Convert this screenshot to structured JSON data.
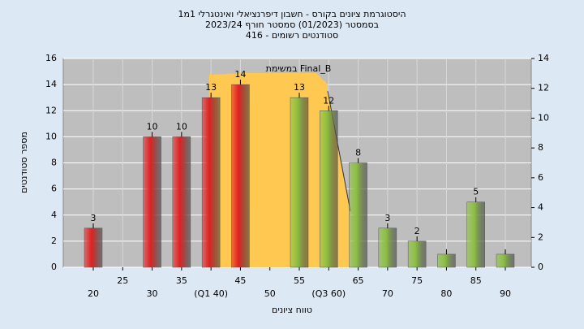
{
  "chart_data": {
    "type": "bar",
    "title": "היסטוגרמת ציונים בקורס - חשבון דיפרנציאלי ואינטגרלי 1מ1",
    "subtitle": "בסמסטר  (01/2023)  סמסטר חורף 2023/24",
    "subtitle2": "סטודנטים רשומים - 416",
    "annotation": "במשימת Final_B",
    "x_label": "טווח ציונים",
    "y_label": "מספר סטודנטים",
    "categories": [
      "20",
      "25",
      "30",
      "35",
      "(Q1 40)",
      "45",
      "50",
      "55",
      "(Q3 60)",
      "65",
      "70",
      "75",
      "80",
      "85",
      "90"
    ],
    "values": [
      3,
      null,
      10,
      10,
      13,
      14,
      null,
      13,
      12,
      8,
      3,
      2,
      1,
      5,
      1
    ],
    "value_labels": [
      "3",
      null,
      "10",
      "10",
      "13",
      "14",
      null,
      "13",
      "12",
      "8",
      "3",
      "2",
      null,
      "5",
      null
    ],
    "colors": [
      "#e02020",
      null,
      "#e02020",
      "#e02020",
      "#e02020",
      "#e02020",
      null,
      "#8cc040",
      "#8cc040",
      "#8cc040",
      "#8cc040",
      "#8cc040",
      "#8cc040",
      "#8cc040",
      "#8cc040"
    ],
    "ylim": [
      0,
      16
    ],
    "yticks": [
      0,
      2,
      4,
      6,
      8,
      10,
      12,
      14,
      16
    ],
    "y2lim": [
      0,
      14
    ],
    "y2ticks": [
      0,
      2,
      4,
      6,
      8,
      10,
      12,
      14
    ],
    "grid": true
  }
}
